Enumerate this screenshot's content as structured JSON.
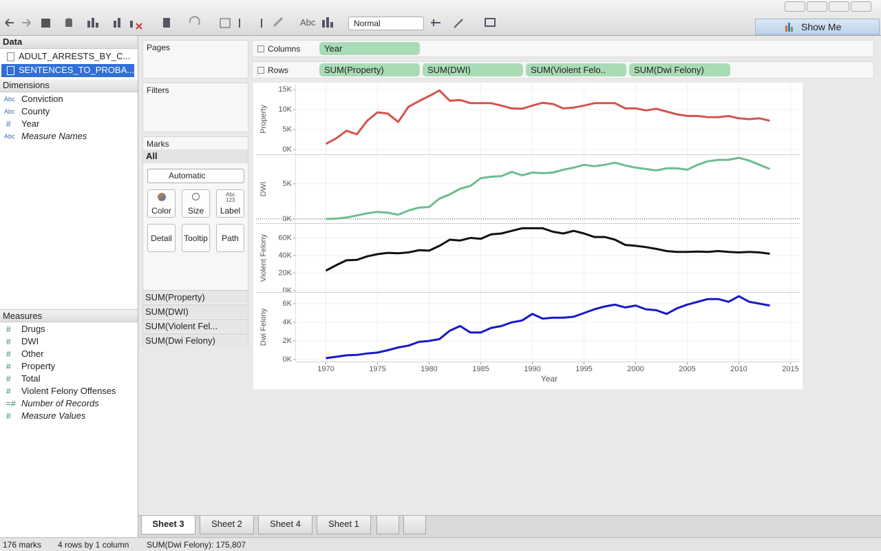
{
  "toolbar": {
    "abc": "Abc",
    "view_size": "Normal",
    "show_me": "Show Me"
  },
  "data_pane": {
    "title": "Data",
    "sources": [
      "ADULT_ARRESTS_BY_C...",
      "SENTENCES_TO_PROBA..."
    ],
    "selected_source": 1,
    "dimensions_title": "Dimensions",
    "dimensions": [
      {
        "type": "Abc",
        "name": "Conviction",
        "italic": false
      },
      {
        "type": "Abc",
        "name": "County",
        "italic": false
      },
      {
        "type": "#",
        "name": "Year",
        "italic": false
      },
      {
        "type": "Abc",
        "name": "Measure Names",
        "italic": true
      }
    ],
    "measures_title": "Measures",
    "measures": [
      {
        "type": "#",
        "name": "Drugs",
        "italic": false
      },
      {
        "type": "#",
        "name": "DWI",
        "italic": false
      },
      {
        "type": "#",
        "name": "Other",
        "italic": false
      },
      {
        "type": "#",
        "name": "Property",
        "italic": false
      },
      {
        "type": "#",
        "name": "Total",
        "italic": false
      },
      {
        "type": "#",
        "name": "Violent Felony Offenses",
        "italic": false
      },
      {
        "type": "=#",
        "name": "Number of Records",
        "italic": true
      },
      {
        "type": "#",
        "name": "Measure Values",
        "italic": true
      }
    ]
  },
  "cards": {
    "pages": "Pages",
    "filters": "Filters",
    "marks": "Marks",
    "all": "All",
    "mark_type": "Automatic",
    "buttons": [
      "Color",
      "Size",
      "Label",
      "Detail",
      "Tooltip",
      "Path"
    ],
    "label_icon": [
      "Abc",
      "123"
    ],
    "measures": [
      "SUM(Property)",
      "SUM(DWI)",
      "SUM(Violent Fel...",
      "SUM(Dwi Felony)"
    ]
  },
  "shelves": {
    "columns_label": "Columns",
    "columns": [
      "Year"
    ],
    "rows_label": "Rows",
    "rows": [
      "SUM(Property)",
      "SUM(DWI)",
      "SUM(Violent Felo..",
      "SUM(Dwi Felony)"
    ]
  },
  "chart_data": {
    "type": "line",
    "x_label": "Year",
    "x": [
      1970,
      1971,
      1972,
      1973,
      1974,
      1975,
      1976,
      1977,
      1978,
      1979,
      1980,
      1981,
      1982,
      1983,
      1984,
      1985,
      1986,
      1987,
      1988,
      1989,
      1990,
      1991,
      1992,
      1993,
      1994,
      1995,
      1996,
      1997,
      1998,
      1999,
      2000,
      2001,
      2002,
      2003,
      2004,
      2005,
      2006,
      2007,
      2008,
      2009,
      2010,
      2011,
      2012,
      2013
    ],
    "xlim": [
      1967.1,
      2015.9
    ],
    "xticks": [
      1970,
      1975,
      1980,
      1985,
      1990,
      1995,
      2000,
      2005,
      2010,
      2015
    ],
    "grid": true,
    "series": [
      {
        "name": "Property",
        "color": "#d4544e",
        "ylim": [
          -1200,
          16400
        ],
        "yticks": [
          {
            "value": 0,
            "label": "0K"
          },
          {
            "value": 5000,
            "label": "5K"
          },
          {
            "value": 10000,
            "label": "10K"
          },
          {
            "value": 15000,
            "label": "15K"
          }
        ],
        "values": [
          1400,
          2800,
          4700,
          3800,
          7200,
          9300,
          9000,
          6900,
          10700,
          12100,
          13400,
          14800,
          12200,
          12400,
          11600,
          11600,
          11600,
          11000,
          10300,
          10200,
          11000,
          11700,
          11400,
          10300,
          10500,
          11000,
          11600,
          11600,
          11600,
          10300,
          10300,
          9800,
          10200,
          9500,
          8800,
          8400,
          8400,
          8100,
          8100,
          8400,
          7800,
          7600,
          7800,
          7200
        ]
      },
      {
        "name": "DWI",
        "color": "#6dbd8c",
        "ylim": [
          -600,
          9100
        ],
        "zero_line": true,
        "yticks": [
          {
            "value": 0,
            "label": "0K"
          },
          {
            "value": 5000,
            "label": "5K"
          }
        ],
        "values": [
          0,
          50,
          200,
          500,
          800,
          1000,
          900,
          600,
          1200,
          1600,
          1700,
          2900,
          3500,
          4300,
          4700,
          5800,
          6000,
          6100,
          6700,
          6200,
          6600,
          6500,
          6600,
          7000,
          7300,
          7700,
          7500,
          7700,
          8000,
          7600,
          7300,
          7100,
          6900,
          7200,
          7200,
          7000,
          7700,
          8200,
          8400,
          8400,
          8700,
          8300,
          7700,
          7100
        ]
      },
      {
        "name": "Violent Felony",
        "color": "#111111",
        "ylim": [
          -1600,
          76000
        ],
        "yticks": [
          {
            "value": 0,
            "label": "0K"
          },
          {
            "value": 20000,
            "label": "20K"
          },
          {
            "value": 40000,
            "label": "40K"
          },
          {
            "value": 60000,
            "label": "60K"
          }
        ],
        "values": [
          22700,
          29000,
          34500,
          35000,
          39000,
          41500,
          43000,
          42500,
          43500,
          46000,
          45500,
          51000,
          58000,
          57000,
          60000,
          59000,
          64000,
          65000,
          68000,
          71000,
          71000,
          71000,
          67000,
          65000,
          68000,
          65000,
          61000,
          61000,
          58000,
          52000,
          51000,
          49500,
          47500,
          45000,
          44000,
          44000,
          44500,
          44000,
          45000,
          44000,
          43500,
          44000,
          43500,
          42000
        ]
      },
      {
        "name": "Dwi Felony",
        "color": "#1818c8",
        "ylim": [
          -220,
          7180
        ],
        "yticks": [
          {
            "value": 0,
            "label": "0K"
          },
          {
            "value": 2000,
            "label": "2K"
          },
          {
            "value": 4000,
            "label": "4K"
          },
          {
            "value": 6000,
            "label": "6K"
          }
        ],
        "values": [
          150,
          300,
          450,
          500,
          650,
          750,
          1000,
          1300,
          1500,
          1900,
          2000,
          2200,
          3100,
          3600,
          2900,
          2900,
          3400,
          3600,
          4000,
          4200,
          4900,
          4400,
          4500,
          4500,
          4600,
          5000,
          5400,
          5700,
          5900,
          5600,
          5800,
          5400,
          5300,
          4900,
          5500,
          5900,
          6200,
          6500,
          6500,
          6200,
          6800,
          6200,
          6000,
          5800
        ]
      }
    ]
  },
  "tabs": {
    "sheets": [
      "Sheet 3",
      "Sheet 2",
      "Sheet 4",
      "Sheet 1"
    ],
    "active_index": 0
  },
  "status": {
    "marks": "176 marks",
    "layout": "4 rows by 1 column",
    "summary": "SUM(Dwi Felony): 175,807"
  }
}
